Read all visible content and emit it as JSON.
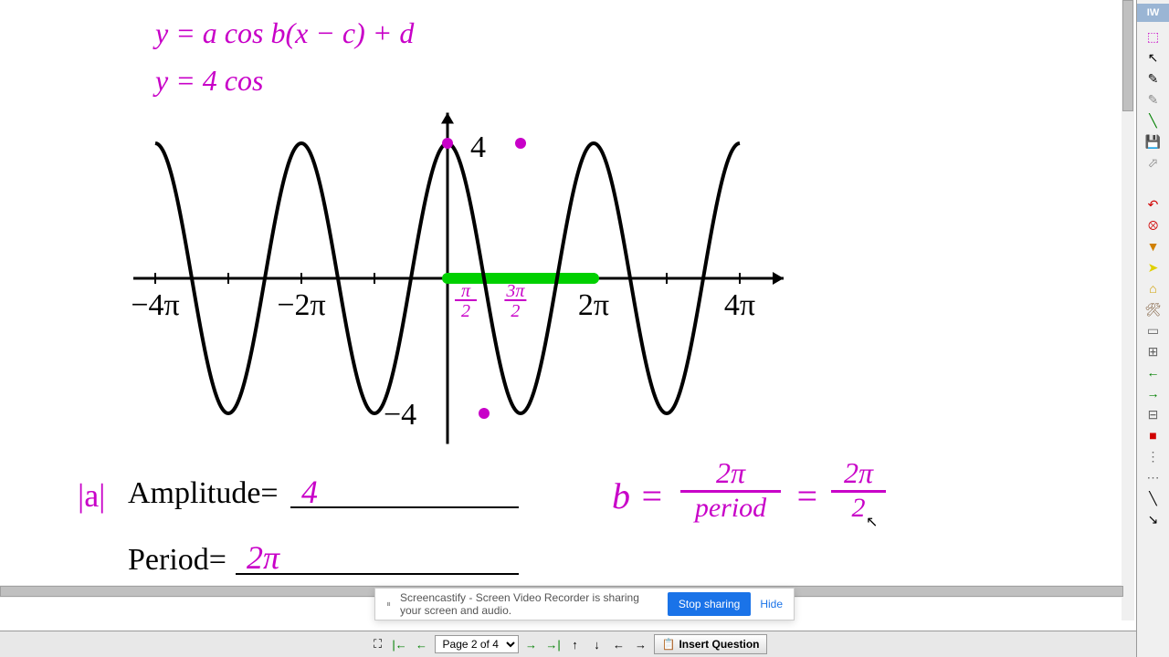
{
  "canvas": {
    "formula_general": "y = a cos b(x − c) + d",
    "formula_specific": "y = 4 cos",
    "amplitude_abs": "|a|",
    "amplitude_label": "Amplitude=",
    "amplitude_value": "4",
    "period_label": "Period=",
    "period_value": "2π",
    "b_formula": "b =",
    "b_frac1_num": "2π",
    "b_frac1_den": "period",
    "b_eq": "=",
    "b_frac2_num": "2π",
    "b_frac2_den": "2",
    "graph": {
      "type": "cosine",
      "amplitude": 4,
      "period_units": "2π",
      "x_range": [
        -4,
        4
      ],
      "x_ticks": [
        -4,
        -2,
        2,
        4
      ],
      "x_tick_labels": [
        "−4π",
        "−2π",
        "2π",
        "4π"
      ],
      "y_top_label": "4",
      "y_bottom_label": "−4",
      "stroke_color": "#000000",
      "stroke_width": 4,
      "highlight_color": "#00d000",
      "highlight_start_x": 0,
      "highlight_end_x": 2,
      "marker_color": "#c800c8",
      "markers": [
        {
          "x_units": 0,
          "y": 4
        },
        {
          "x_units": 1,
          "y": 4
        },
        {
          "x_units": 0.5,
          "y": -4
        }
      ],
      "pi_labels": [
        {
          "text_num": "π",
          "text_den": "2",
          "x_units": 0.1
        },
        {
          "text_num": "3π",
          "text_den": "2",
          "x_units": 0.78
        }
      ]
    }
  },
  "screencast": {
    "pause_icon": "⏸",
    "message": "Screencastify - Screen Video Recorder is sharing your screen and audio.",
    "stop_label": "Stop sharing",
    "hide_label": "Hide"
  },
  "bottom_nav": {
    "fit_icon": "⛶",
    "first_icon": "|←",
    "prev_icon": "←",
    "page_label": "Page 2 of 4",
    "next_icon": "→",
    "last_icon": "→|",
    "up_icon": "↑",
    "down_icon": "↓",
    "left_icon": "←",
    "right_icon": "→",
    "insert_icon": "📋",
    "insert_label": "Insert Question"
  },
  "right_toolbar": {
    "tab_label": "IW",
    "tools": [
      {
        "name": "selection-tool",
        "glyph": "⬚",
        "color": "#c800c8"
      },
      {
        "name": "arrow-tool",
        "glyph": "↖",
        "color": "#000000"
      },
      {
        "name": "pen-tool",
        "glyph": "✎",
        "color": "#000000"
      },
      {
        "name": "highlighter-tool",
        "glyph": "✎",
        "color": "#888888"
      },
      {
        "name": "line-tool",
        "glyph": "╲",
        "color": "#008000"
      },
      {
        "name": "save-tool",
        "glyph": "💾",
        "color": "#c04040"
      },
      {
        "name": "cursor-tool",
        "glyph": "⬀",
        "color": "#888888"
      },
      {
        "name": "blank1",
        "glyph": "",
        "color": "#ffffff"
      },
      {
        "name": "undo-tool",
        "glyph": "↶",
        "color": "#d00000"
      },
      {
        "name": "delete-tool",
        "glyph": "⮾",
        "color": "#d00000"
      },
      {
        "name": "stamp-tool",
        "glyph": "▼",
        "color": "#d08000"
      },
      {
        "name": "pointer-tool",
        "glyph": "➤",
        "color": "#e0d000"
      },
      {
        "name": "home-tool",
        "glyph": "⌂",
        "color": "#d0a000"
      },
      {
        "name": "tools-tool",
        "glyph": "🛠",
        "color": "#806040"
      },
      {
        "name": "rect-tool",
        "glyph": "▭",
        "color": "#666666"
      },
      {
        "name": "grid-tool",
        "glyph": "⊞",
        "color": "#666666"
      },
      {
        "name": "left-arrow-tool",
        "glyph": "←",
        "color": "#008000"
      },
      {
        "name": "right-arrow-tool",
        "glyph": "→",
        "color": "#008000"
      },
      {
        "name": "calc-tool",
        "glyph": "⊟",
        "color": "#666666"
      },
      {
        "name": "close-tool",
        "glyph": "■",
        "color": "#d00000"
      },
      {
        "name": "options-tool",
        "glyph": "⋮",
        "color": "#666666"
      },
      {
        "name": "more-tool",
        "glyph": "⋯",
        "color": "#666666"
      },
      {
        "name": "draw-tool",
        "glyph": "╲",
        "color": "#000000"
      },
      {
        "name": "arrow-down-tool",
        "glyph": "↘",
        "color": "#000000"
      }
    ]
  },
  "colors": {
    "handwriting": "#c800c8",
    "printed": "#000000",
    "highlight": "#00d000",
    "accent": "#1a73e8"
  }
}
